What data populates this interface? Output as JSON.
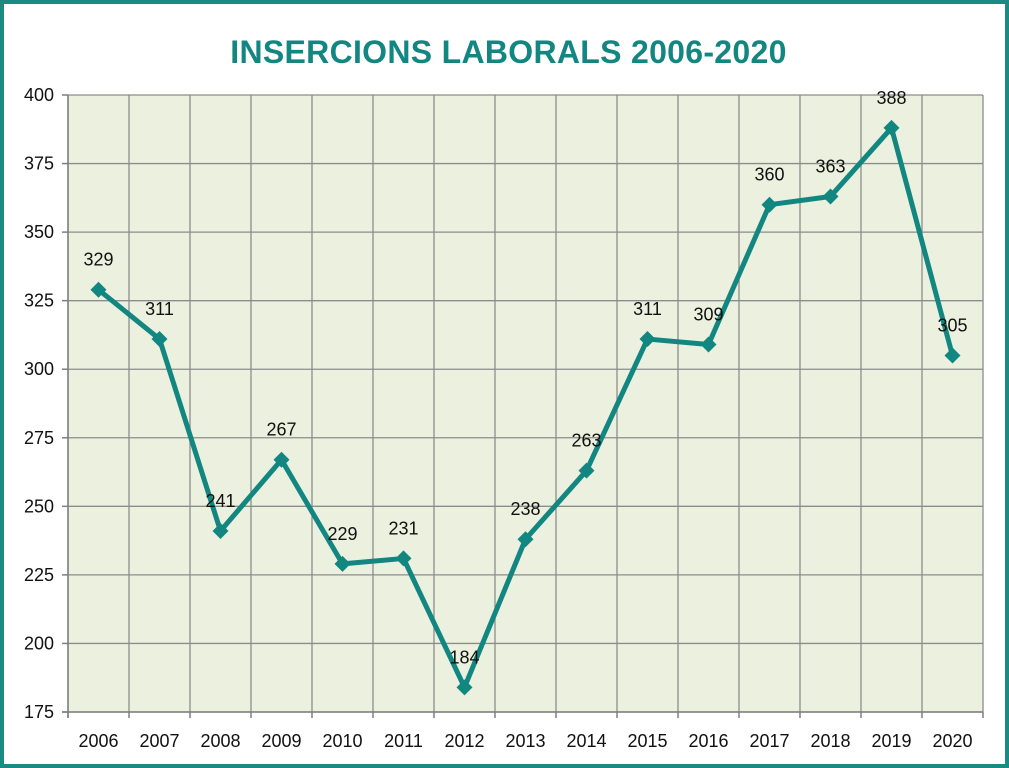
{
  "chart_data": {
    "type": "line",
    "title": "INSERCIONS LABORALS 2006-2020",
    "xlabel": "",
    "ylabel": "",
    "categories": [
      "2006",
      "2007",
      "2008",
      "2009",
      "2010",
      "2011",
      "2012",
      "2013",
      "2014",
      "2015",
      "2016",
      "2017",
      "2018",
      "2019",
      "2020"
    ],
    "series": [
      {
        "values": [
          329,
          311,
          241,
          267,
          229,
          231,
          184,
          238,
          263,
          311,
          309,
          360,
          363,
          388,
          305
        ]
      }
    ],
    "ylim": [
      175,
      400
    ],
    "yticks": [
      175,
      200,
      225,
      250,
      275,
      300,
      325,
      350,
      375,
      400
    ],
    "grid": true,
    "legend": "none",
    "colors": {
      "line": "#128680",
      "plot_background": "#ebf1de",
      "grid": "#8c8c8c",
      "title": "#128680",
      "border": "#1a8a82"
    }
  }
}
